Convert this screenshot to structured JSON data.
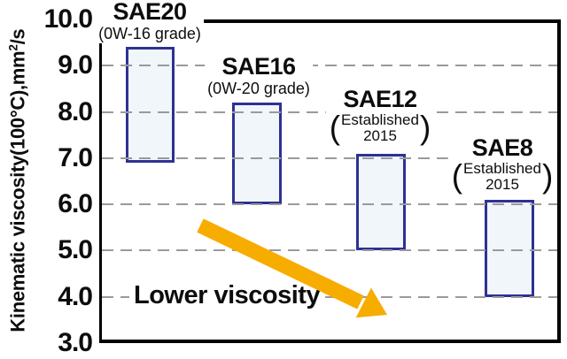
{
  "chart_data": {
    "type": "bar",
    "subtype": "floating-range-bars",
    "title": "",
    "xlabel": "",
    "ylabel": {
      "text_before_sup": "Kinematic viscosity(100°C),mm",
      "sup": "2",
      "text_after_sup": "/s"
    },
    "ylim": [
      3.0,
      10.0
    ],
    "ytick_labels": [
      "10.0",
      "9.0",
      "8.0",
      "7.0",
      "6.0",
      "5.0",
      "4.0",
      "3.0"
    ],
    "ytick_values": [
      10,
      9,
      8,
      7,
      6,
      5,
      4,
      3
    ],
    "gridline_values": [
      9,
      8,
      7,
      6,
      5,
      4
    ],
    "grid": "dashed-horizontal",
    "legend": null,
    "categories": [
      "SAE20",
      "SAE16",
      "SAE12",
      "SAE8"
    ],
    "bars": [
      {
        "label": "SAE20",
        "sublabel_style": "inline",
        "sublabel": "(0W-16 grade)",
        "low": 6.9,
        "high": 9.4
      },
      {
        "label": "SAE16",
        "sublabel_style": "inline",
        "sublabel": "(0W-20 grade)",
        "low": 6.0,
        "high": 8.2
      },
      {
        "label": "SAE12",
        "sublabel_style": "big-parens",
        "sublabel_line1": "Established",
        "sublabel_line2": "2015",
        "low": 5.0,
        "high": 7.1
      },
      {
        "label": "SAE8",
        "sublabel_style": "big-parens",
        "sublabel_line1": "Established",
        "sublabel_line2": "2015",
        "low": 4.0,
        "high": 6.1
      }
    ],
    "annotation_arrow": {
      "text": "Lower viscosity",
      "direction": "down-right"
    },
    "colors": {
      "bar_fill": "#f0f6f9",
      "bar_border": "#2e3192",
      "gridline": "#9a9a9a",
      "frame": "#000000",
      "arrow": "#f7ac00",
      "text": "#0d0d0d",
      "background": "#ffffff"
    }
  }
}
